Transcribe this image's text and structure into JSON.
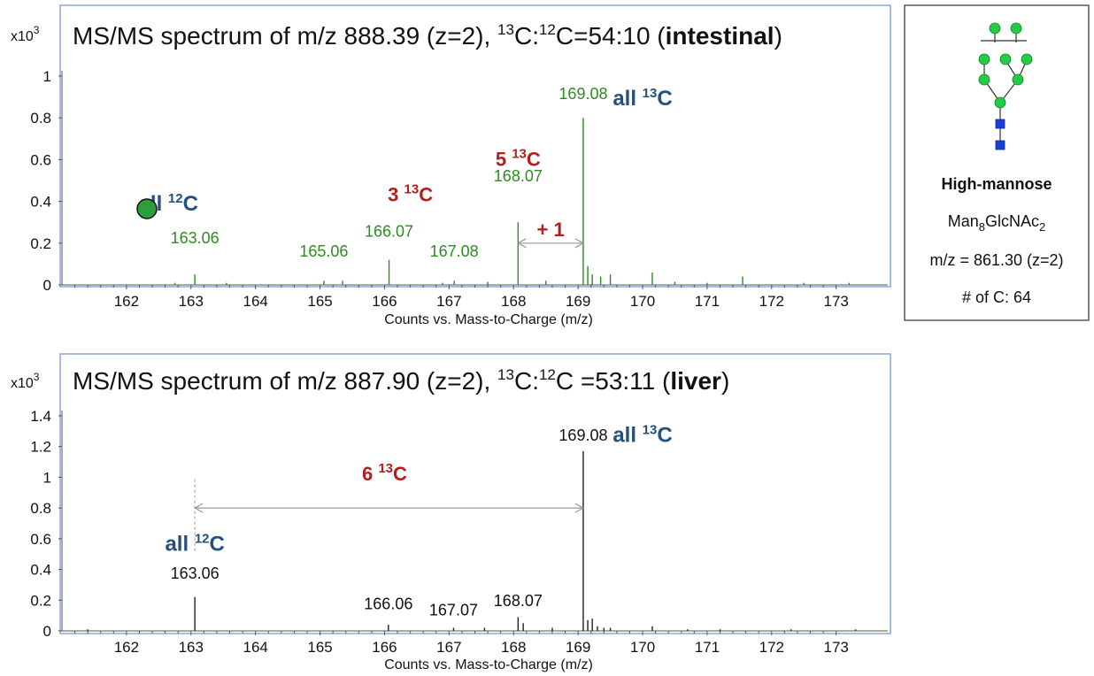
{
  "colors": {
    "green": "#2e8b22",
    "black": "#111111",
    "blue_annotation": "#24507f",
    "red_annotation": "#b41e1e",
    "panel_border": "#8aa9d6",
    "mannose_green": "#22cc44",
    "glcnac_blue": "#1a3fd6"
  },
  "chart_data": [
    {
      "type": "bar",
      "title_parts": {
        "prefix": "MS/MS spectrum of m/z 888.39 (z=2), ",
        "iso13": "13",
        "c1": "C:",
        "iso12": "12",
        "ratio": "C=54:10 (",
        "tissue": "intestinal",
        "suffix": ")"
      },
      "y_scale_label": {
        "base": "x10",
        "exp": "3"
      },
      "xlabel": "Counts vs. Mass-to-Charge (m/z)",
      "xlim": [
        161,
        173.8
      ],
      "ylim": [
        0,
        1.0
      ],
      "xticks": [
        162,
        163,
        164,
        165,
        166,
        167,
        168,
        169,
        170,
        171,
        172,
        173
      ],
      "yticks": [
        0,
        0.2,
        0.4,
        0.6,
        0.8,
        1
      ],
      "ytick_labels": [
        "0",
        "0.2",
        "0.4",
        "0.6",
        "0.8",
        "1"
      ],
      "bar_color": "#2e8b22",
      "peaks": [
        {
          "mz": 163.06,
          "intensity": 0.05
        },
        {
          "mz": 165.06,
          "intensity": 0.02
        },
        {
          "mz": 166.07,
          "intensity": 0.12
        },
        {
          "mz": 167.08,
          "intensity": 0.02
        },
        {
          "mz": 168.07,
          "intensity": 0.3
        },
        {
          "mz": 169.08,
          "intensity": 0.8
        },
        {
          "mz": 169.15,
          "intensity": 0.09
        },
        {
          "mz": 169.22,
          "intensity": 0.05
        },
        {
          "mz": 169.35,
          "intensity": 0.04
        },
        {
          "mz": 169.5,
          "intensity": 0.05
        },
        {
          "mz": 170.15,
          "intensity": 0.06
        },
        {
          "mz": 171.55,
          "intensity": 0.04
        },
        {
          "mz": 162.75,
          "intensity": 0.01
        },
        {
          "mz": 163.55,
          "intensity": 0.01
        },
        {
          "mz": 165.35,
          "intensity": 0.02
        },
        {
          "mz": 166.9,
          "intensity": 0.01
        },
        {
          "mz": 167.6,
          "intensity": 0.015
        },
        {
          "mz": 168.5,
          "intensity": 0.02
        },
        {
          "mz": 170.5,
          "intensity": 0.015
        },
        {
          "mz": 171.0,
          "intensity": 0.01
        },
        {
          "mz": 172.5,
          "intensity": 0.01
        },
        {
          "mz": 173.2,
          "intensity": 0.01
        }
      ],
      "peak_labels": [
        {
          "text": "163.06",
          "mz": 163.06,
          "y": 0.2
        },
        {
          "text": "165.06",
          "mz": 165.06,
          "y": 0.135
        },
        {
          "text": "166.07",
          "mz": 166.07,
          "y": 0.23
        },
        {
          "text": "167.08",
          "mz": 167.08,
          "y": 0.135
        },
        {
          "text": "168.07",
          "mz": 168.07,
          "y": 0.495
        },
        {
          "text": "169.08",
          "mz": 169.08,
          "y": 0.89
        }
      ],
      "annotations": [
        {
          "kind": "blue",
          "base": "all ",
          "sup": "12",
          "tail": "C",
          "mz": 162.65,
          "y": 0.355
        },
        {
          "kind": "red",
          "base": "3 ",
          "sup": "13",
          "tail": "C",
          "mz": 166.4,
          "y": 0.4
        },
        {
          "kind": "red",
          "base": "5 ",
          "sup": "13",
          "tail": "C",
          "mz": 168.07,
          "y": 0.57
        },
        {
          "kind": "blue",
          "base": "all ",
          "sup": "13",
          "tail": "C",
          "mz": 170.0,
          "y": 0.86
        }
      ],
      "arrow": {
        "from": 168.07,
        "to": 169.08,
        "y": 0.2,
        "label": "+ 1"
      }
    },
    {
      "type": "bar",
      "title_parts": {
        "prefix": "MS/MS spectrum of m/z 887.90 (z=2), ",
        "iso13": "13",
        "c1": "C:",
        "iso12": "12",
        "ratio": "C =53:11 (",
        "tissue": "liver",
        "suffix": ")"
      },
      "y_scale_label": {
        "base": "x10",
        "exp": "3"
      },
      "xlabel": "Counts vs. Mass-to-Charge (m/z)",
      "xlim": [
        161,
        173.8
      ],
      "ylim": [
        0,
        1.5
      ],
      "xticks": [
        162,
        163,
        164,
        165,
        166,
        167,
        168,
        169,
        170,
        171,
        172,
        173
      ],
      "yticks": [
        0,
        0.2,
        0.4,
        0.6,
        0.8,
        1,
        1.2,
        1.4
      ],
      "ytick_labels": [
        "0",
        "0.2",
        "0.4",
        "0.6",
        "0.8",
        "1",
        "1.2",
        "1.4"
      ],
      "bar_color": "#222222",
      "peaks": [
        {
          "mz": 163.06,
          "intensity": 0.22
        },
        {
          "mz": 166.06,
          "intensity": 0.04
        },
        {
          "mz": 167.07,
          "intensity": 0.02
        },
        {
          "mz": 168.07,
          "intensity": 0.09
        },
        {
          "mz": 168.15,
          "intensity": 0.05
        },
        {
          "mz": 169.08,
          "intensity": 1.17
        },
        {
          "mz": 169.15,
          "intensity": 0.07
        },
        {
          "mz": 169.22,
          "intensity": 0.08
        },
        {
          "mz": 169.3,
          "intensity": 0.03
        },
        {
          "mz": 169.4,
          "intensity": 0.02
        },
        {
          "mz": 169.5,
          "intensity": 0.02
        },
        {
          "mz": 170.15,
          "intensity": 0.03
        },
        {
          "mz": 167.55,
          "intensity": 0.02
        },
        {
          "mz": 168.6,
          "intensity": 0.02
        },
        {
          "mz": 161.4,
          "intensity": 0.01
        },
        {
          "mz": 170.7,
          "intensity": 0.01
        },
        {
          "mz": 171.2,
          "intensity": 0.01
        },
        {
          "mz": 172.3,
          "intensity": 0.01
        },
        {
          "mz": 173.3,
          "intensity": 0.01
        }
      ],
      "peak_labels": [
        {
          "text": "163.06",
          "mz": 163.06,
          "y": 0.34
        },
        {
          "text": "166.06",
          "mz": 166.06,
          "y": 0.14
        },
        {
          "text": "167.07",
          "mz": 167.07,
          "y": 0.1
        },
        {
          "text": "168.07",
          "mz": 168.07,
          "y": 0.16
        },
        {
          "text": "169.08",
          "mz": 169.08,
          "y": 1.24
        }
      ],
      "annotations": [
        {
          "kind": "blue",
          "base": "all ",
          "sup": "12",
          "tail": "C",
          "mz": 163.06,
          "y": 0.52
        },
        {
          "kind": "red",
          "base": "6 ",
          "sup": "13",
          "tail": "C",
          "mz": 166.0,
          "y": 0.98
        },
        {
          "kind": "blue",
          "base": "all ",
          "sup": "13",
          "tail": "C",
          "mz": 170.0,
          "y": 1.23
        }
      ],
      "arrow": {
        "from": 163.06,
        "to": 169.08,
        "y": 0.8,
        "label": ""
      },
      "dashed_marker": {
        "mz": 163.06,
        "from": 0.52,
        "to": 1.0
      }
    }
  ],
  "glycan_box": {
    "name": "High-mannose",
    "formula_parts": {
      "a": "Man",
      "a_sub": "8",
      "b": "GlcNAc",
      "b_sub": "2"
    },
    "mz_line": "m/z = 861.30  (z=2)",
    "carbon_line": "# of C: 64"
  }
}
